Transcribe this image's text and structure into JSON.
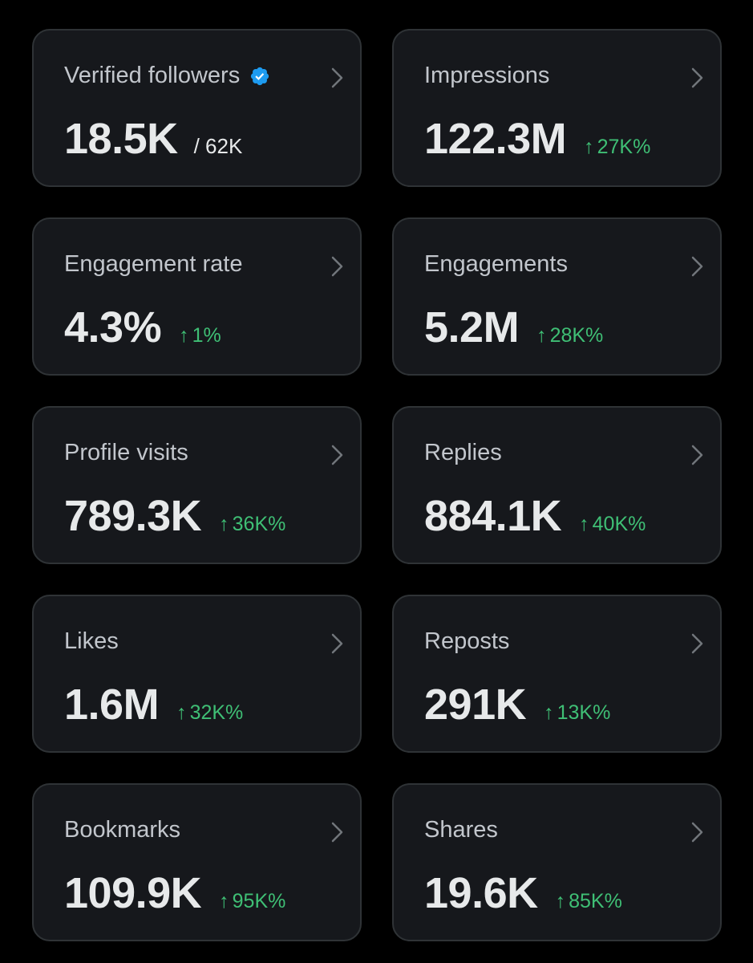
{
  "colors": {
    "background": "#000000",
    "card_background": "#16181c",
    "card_border": "#2f3336",
    "label": "#c2c6cc",
    "value": "#e7e9ea",
    "positive_change": "#3fbf75",
    "verified_badge": "#1d9bf0"
  },
  "icons": {
    "verified": "verified-badge-icon",
    "chevron": "chevron-right-icon",
    "arrow": "arrow-up-icon"
  },
  "arrow_glyph": "↑",
  "metrics": [
    {
      "label": "Verified followers",
      "value": "18.5K",
      "total": "/ 62K"
    },
    {
      "label": "Impressions",
      "value": "122.3M",
      "change": "27K%"
    },
    {
      "label": "Engagement rate",
      "value": "4.3%",
      "change": "1%"
    },
    {
      "label": "Engagements",
      "value": "5.2M",
      "change": "28K%"
    },
    {
      "label": "Profile visits",
      "value": "789.3K",
      "change": "36K%"
    },
    {
      "label": "Replies",
      "value": "884.1K",
      "change": "40K%"
    },
    {
      "label": "Likes",
      "value": "1.6M",
      "change": "32K%"
    },
    {
      "label": "Reposts",
      "value": "291K",
      "change": "13K%"
    },
    {
      "label": "Bookmarks",
      "value": "109.9K",
      "change": "95K%"
    },
    {
      "label": "Shares",
      "value": "19.6K",
      "change": "85K%"
    }
  ]
}
